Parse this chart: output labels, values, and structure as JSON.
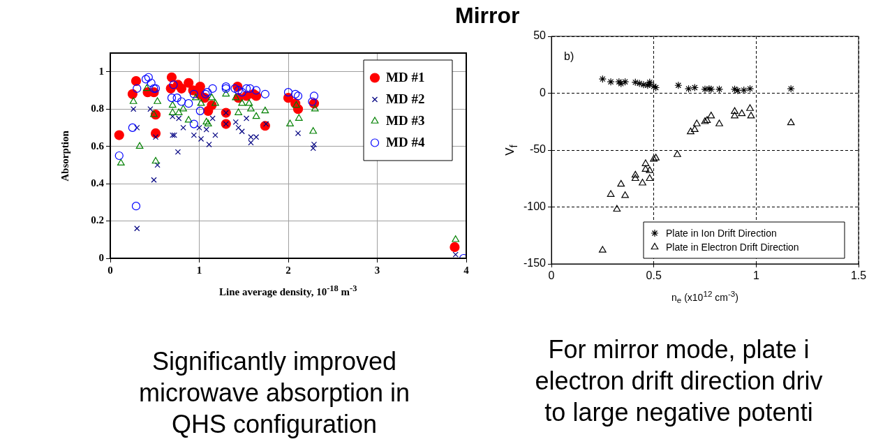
{
  "chart_data": [
    {
      "type": "scatter",
      "xlabel": "Line average density, 10$^{-18}$ m$^{-3}$",
      "ylabel": "Absorption",
      "xlim": [
        0,
        4
      ],
      "xticks": [
        0,
        1,
        2,
        3,
        4
      ],
      "ylim": [
        0,
        1.1
      ],
      "yticks": [
        0,
        0.2,
        0.4,
        0.6,
        0.8,
        1
      ],
      "grid": true,
      "legend": "top right",
      "annotations": [
        "Significantly improved microwave absorption in QHS configuration"
      ],
      "series": [
        {
          "name": "MD #1",
          "color": "#ff0000",
          "marker": "circle",
          "x": [
            0.1,
            0.29,
            0.25,
            0.42,
            0.49,
            0.51,
            0.51,
            0.69,
            0.68,
            0.76,
            0.8,
            0.88,
            0.93,
            1.01,
            1.0,
            1.06,
            1.1,
            1.14,
            1.3,
            1.3,
            1.43,
            1.44,
            1.53,
            1.61,
            1.64,
            1.74,
            2.0,
            2.08,
            2.11,
            2.29,
            3.87
          ],
          "values": [
            0.66,
            0.95,
            0.88,
            0.89,
            0.89,
            0.77,
            0.67,
            0.97,
            0.91,
            0.93,
            0.91,
            0.94,
            0.9,
            0.92,
            0.88,
            0.86,
            0.79,
            0.82,
            0.78,
            0.72,
            0.92,
            0.86,
            0.87,
            0.88,
            0.87,
            0.71,
            0.86,
            0.83,
            0.8,
            0.83,
            0.06
          ]
        },
        {
          "name": "MD #2",
          "color": "#000080",
          "marker": "cross",
          "x": [
            0.26,
            0.3,
            0.3,
            0.45,
            0.51,
            0.53,
            0.49,
            0.7,
            0.72,
            0.76,
            0.7,
            0.77,
            0.82,
            0.94,
            1.0,
            1.02,
            1.08,
            1.11,
            1.15,
            1.18,
            1.3,
            1.3,
            1.41,
            1.44,
            1.48,
            1.53,
            1.58,
            1.58,
            1.64,
            1.75,
            2.11,
            2.29,
            2.28,
            3.88
          ],
          "values": [
            0.8,
            0.7,
            0.16,
            0.8,
            0.65,
            0.5,
            0.42,
            0.66,
            0.66,
            0.57,
            0.76,
            0.75,
            0.7,
            0.66,
            0.7,
            0.64,
            0.69,
            0.61,
            0.75,
            0.66,
            0.78,
            0.72,
            0.73,
            0.7,
            0.68,
            0.75,
            0.65,
            0.62,
            0.65,
            0.72,
            0.67,
            0.61,
            0.59,
            0.02
          ]
        },
        {
          "name": "MD #3",
          "color": "#008000",
          "marker": "triangle",
          "x": [
            0.12,
            0.26,
            0.33,
            0.41,
            0.53,
            0.49,
            0.51,
            0.7,
            0.7,
            0.77,
            0.82,
            0.88,
            0.96,
            1.02,
            1.08,
            1.1,
            1.14,
            1.18,
            1.3,
            1.41,
            1.44,
            1.48,
            1.56,
            1.58,
            1.64,
            1.74,
            2.02,
            2.09,
            2.12,
            2.28,
            2.3,
            3.88
          ],
          "values": [
            0.51,
            0.84,
            0.6,
            0.91,
            0.84,
            0.77,
            0.52,
            0.82,
            0.78,
            0.78,
            0.8,
            0.74,
            0.86,
            0.83,
            0.73,
            0.72,
            0.86,
            0.83,
            0.88,
            0.86,
            0.78,
            0.83,
            0.83,
            0.8,
            0.76,
            0.79,
            0.72,
            0.82,
            0.75,
            0.68,
            0.8,
            0.1
          ]
        },
        {
          "name": "MD #4",
          "color": "#0000ff",
          "marker": "circle",
          "x": [
            0.1,
            0.25,
            0.29,
            0.3,
            0.4,
            0.43,
            0.46,
            0.49,
            0.51,
            0.71,
            0.69,
            0.75,
            0.8,
            0.88,
            0.94,
            0.94,
            1.01,
            1.07,
            1.09,
            1.15,
            1.3,
            1.3,
            1.4,
            1.44,
            1.48,
            1.53,
            1.57,
            1.64,
            1.74,
            2.0,
            2.08,
            2.11,
            2.29,
            2.27,
            3.97
          ],
          "values": [
            0.55,
            0.7,
            0.28,
            0.91,
            0.96,
            0.97,
            0.94,
            0.91,
            0.91,
            0.93,
            0.86,
            0.86,
            0.84,
            0.83,
            0.88,
            0.72,
            0.79,
            0.88,
            0.89,
            0.91,
            0.92,
            0.91,
            0.91,
            0.9,
            0.89,
            0.91,
            0.91,
            0.9,
            0.88,
            0.89,
            0.88,
            0.87,
            0.87,
            0.84,
            0.0
          ]
        }
      ]
    },
    {
      "type": "scatter",
      "title": "Mirror",
      "xlabel": "n$_{e}$ (x10$^{12}$ cm$^{-3}$)",
      "ylabel": "V$_{f}$",
      "xlim": [
        0,
        1.5
      ],
      "xticks": [
        0,
        0.5,
        1,
        1.5
      ],
      "ylim": [
        -150,
        50
      ],
      "yticks": [
        -150,
        -100,
        -50,
        0,
        50
      ],
      "grid": true,
      "legend": "bottom right",
      "annotations": [
        "b)",
        "For mirror mode, plate i",
        "electron drift direction driv",
        "to large negative potenti"
      ],
      "series": [
        {
          "name": "Plate in Ion Drift Direction",
          "color": "#000000",
          "marker": "cross",
          "x": [
            0.25,
            0.29,
            0.33,
            0.34,
            0.36,
            0.41,
            0.43,
            0.45,
            0.47,
            0.48,
            0.48,
            0.5,
            0.51,
            0.62,
            0.67,
            0.7,
            0.75,
            0.77,
            0.78,
            0.82,
            0.895,
            0.91,
            0.94,
            0.97,
            1.17
          ],
          "values": [
            12.5,
            10,
            10,
            8.4,
            10,
            9.6,
            8.6,
            7.5,
            6.9,
            9.6,
            8,
            6,
            4.9,
            6.9,
            3.9,
            4.9,
            3.5,
            3.9,
            3.5,
            3.5,
            3.5,
            2.3,
            2.7,
            3.9,
            3.9
          ]
        },
        {
          "name": "Plate in Electron Drift Direction",
          "color": "#000000",
          "marker": "triangle",
          "x": [
            0.25,
            0.32,
            0.29,
            0.34,
            0.36,
            0.41,
            0.41,
            0.445,
            0.46,
            0.46,
            0.48,
            0.48,
            0.5,
            0.51,
            0.615,
            0.68,
            0.7,
            0.71,
            0.75,
            0.76,
            0.78,
            0.82,
            0.895,
            0.895,
            0.93,
            0.97,
            0.975,
            1.17
          ],
          "values": [
            -138,
            -102,
            -89,
            -80,
            -90,
            -72,
            -75,
            -79,
            -62,
            -67,
            -75,
            -68,
            -58,
            -57,
            -54,
            -34,
            -32,
            -27,
            -25,
            -24,
            -20,
            -27,
            -16,
            -20,
            -18,
            -13.5,
            -20,
            -26
          ]
        }
      ]
    }
  ]
}
